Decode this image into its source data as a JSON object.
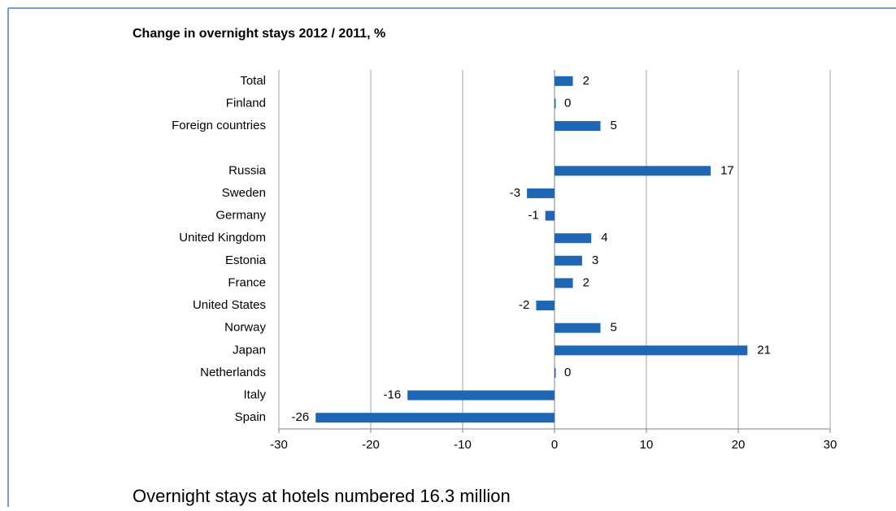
{
  "chart_data": {
    "type": "barh",
    "title": "Change in overnight stays 2012 / 2011, %",
    "categories": [
      "Total",
      "Finland",
      "Foreign countries",
      null,
      "Russia",
      "Sweden",
      "Germany",
      "United Kingdom",
      "Estonia",
      "France",
      "United States",
      "Norway",
      "Japan",
      "Netherlands",
      "Italy",
      "Spain"
    ],
    "values": [
      2,
      0,
      5,
      null,
      17,
      -3,
      -1,
      4,
      3,
      2,
      -2,
      5,
      21,
      0,
      -16,
      -26
    ],
    "color": "#1f66b5",
    "xlim": [
      -30,
      30
    ],
    "xticks": [
      -30,
      -20,
      -10,
      0,
      10,
      20,
      30
    ],
    "grid": true,
    "footer": "Overnight stays at hotels numbered 16.3 million"
  }
}
